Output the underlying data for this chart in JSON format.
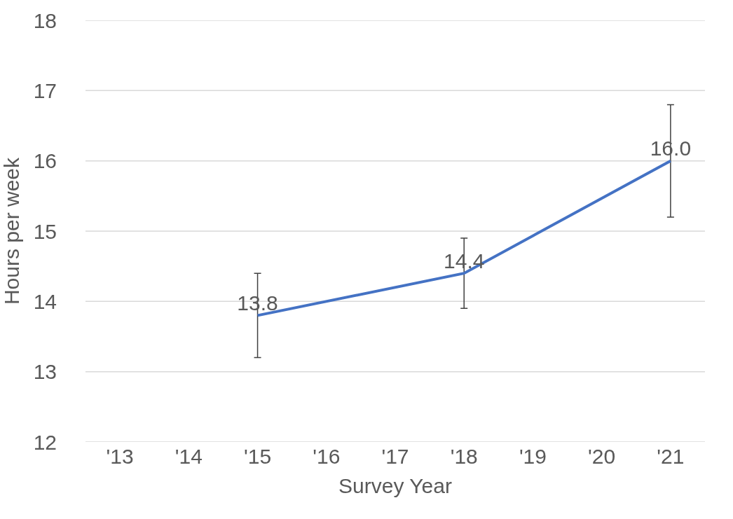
{
  "chart_data": {
    "type": "line",
    "xlabel": "Survey Year",
    "ylabel": "Hours per week",
    "categories": [
      "'13",
      "'14",
      "'15",
      "'16",
      "'17",
      "'18",
      "'19",
      "'20",
      "'21"
    ],
    "series": [
      {
        "color": "#4472c4",
        "values": [
          null,
          null,
          13.8,
          null,
          null,
          14.4,
          null,
          null,
          16.0
        ],
        "value_labels": [
          null,
          null,
          "13.8",
          null,
          null,
          "14.4",
          null,
          null,
          "16.0"
        ],
        "errors": [
          null,
          null,
          0.6,
          null,
          null,
          0.5,
          null,
          null,
          0.8
        ]
      }
    ],
    "ylim": [
      12,
      18
    ],
    "yticks": [
      12,
      13,
      14,
      15,
      16,
      17,
      18
    ],
    "grid": "y",
    "marker": "none",
    "line_style": "solid"
  }
}
